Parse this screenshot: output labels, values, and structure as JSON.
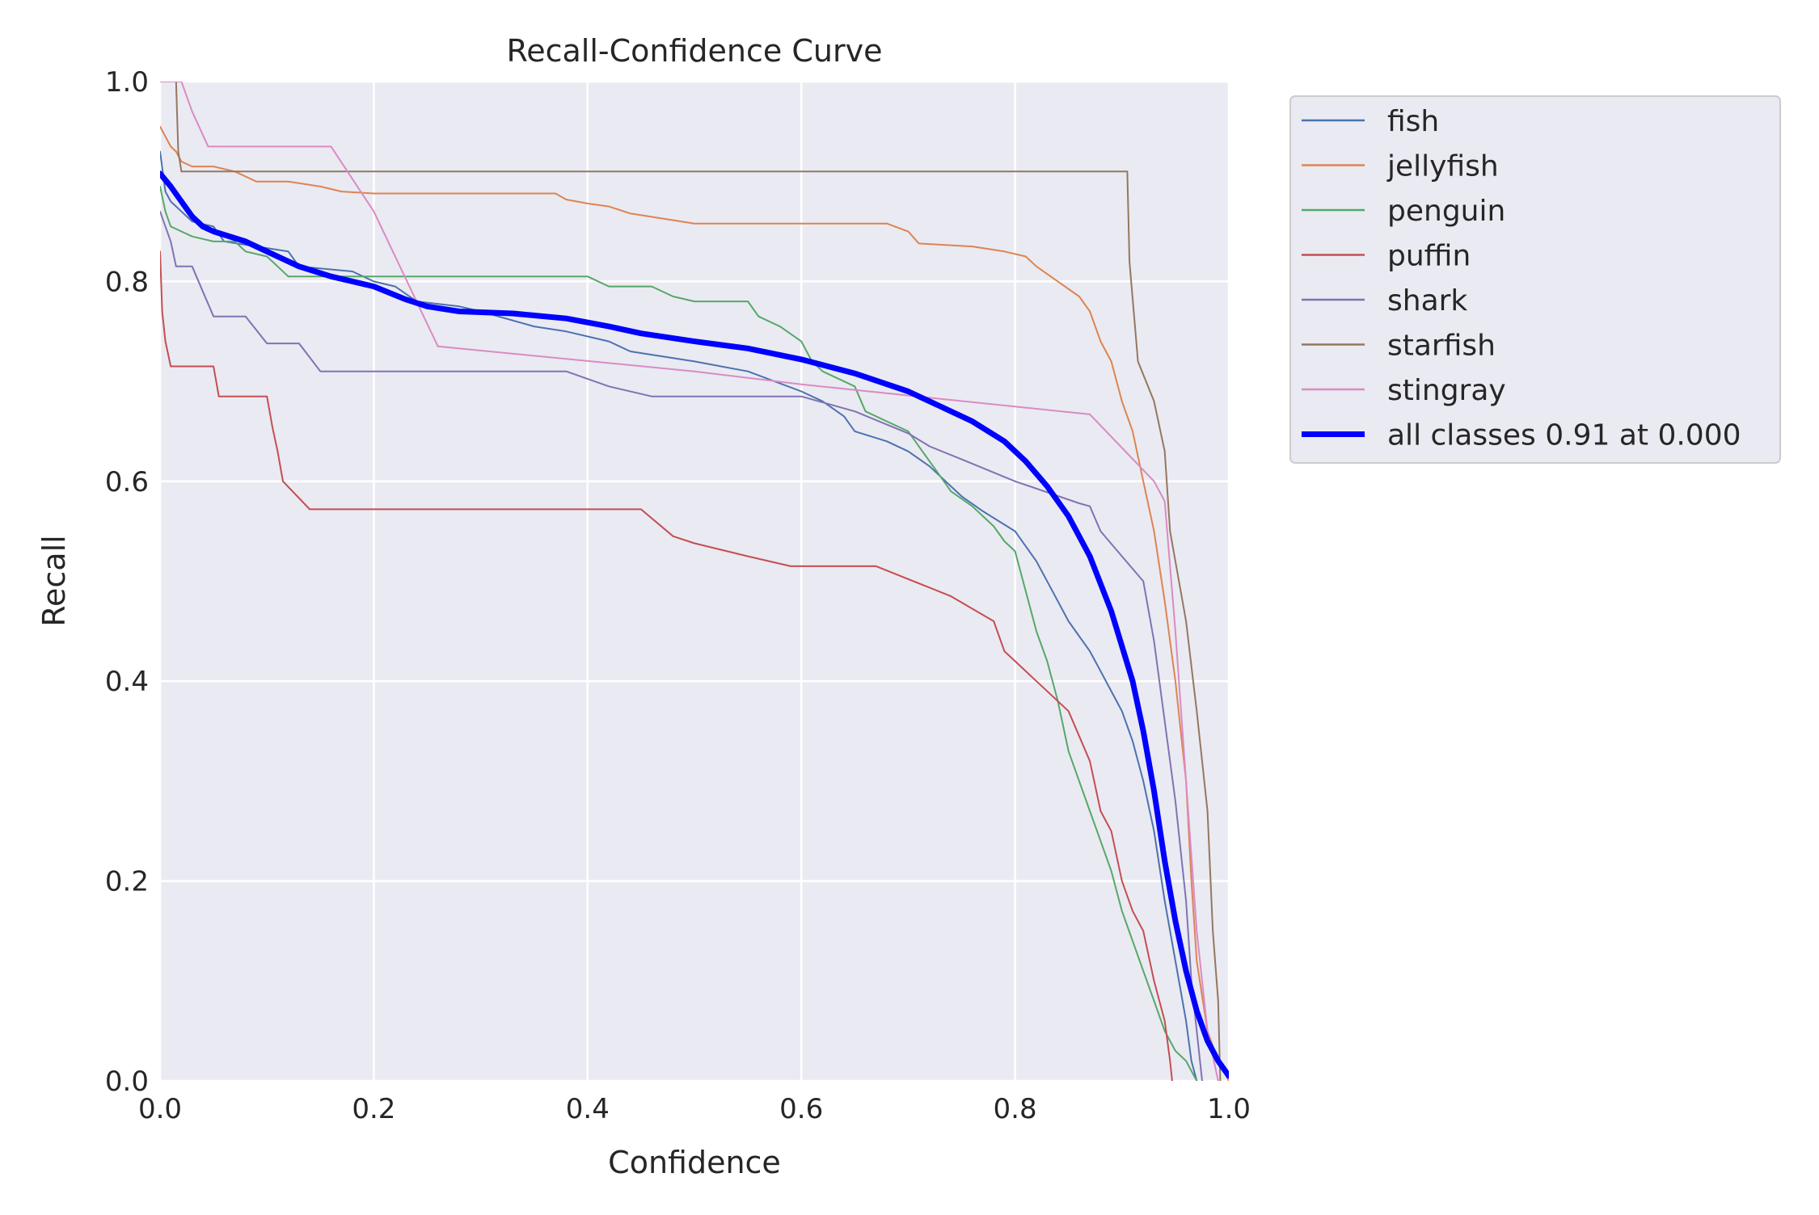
{
  "chart_data": {
    "type": "line",
    "title": "Recall-Confidence Curve",
    "xlabel": "Confidence",
    "ylabel": "Recall",
    "xlim": [
      0,
      1
    ],
    "ylim": [
      0,
      1
    ],
    "xticks": [
      "0.0",
      "0.2",
      "0.4",
      "0.6",
      "0.8",
      "1.0"
    ],
    "yticks": [
      "0.0",
      "0.2",
      "0.4",
      "0.6",
      "0.8",
      "1.0"
    ],
    "grid": true,
    "legend_position": "outside-upper-right",
    "series": [
      {
        "name": "fish",
        "color": "#4c72b0",
        "width": 2,
        "points": [
          [
            0,
            0.93
          ],
          [
            0.005,
            0.89
          ],
          [
            0.01,
            0.88
          ],
          [
            0.03,
            0.86
          ],
          [
            0.05,
            0.855
          ],
          [
            0.06,
            0.84
          ],
          [
            0.12,
            0.83
          ],
          [
            0.13,
            0.815
          ],
          [
            0.18,
            0.81
          ],
          [
            0.2,
            0.8
          ],
          [
            0.22,
            0.795
          ],
          [
            0.24,
            0.78
          ],
          [
            0.28,
            0.775
          ],
          [
            0.3,
            0.77
          ],
          [
            0.35,
            0.755
          ],
          [
            0.38,
            0.75
          ],
          [
            0.42,
            0.74
          ],
          [
            0.44,
            0.73
          ],
          [
            0.5,
            0.72
          ],
          [
            0.55,
            0.71
          ],
          [
            0.6,
            0.69
          ],
          [
            0.62,
            0.68
          ],
          [
            0.64,
            0.665
          ],
          [
            0.65,
            0.65
          ],
          [
            0.68,
            0.64
          ],
          [
            0.7,
            0.63
          ],
          [
            0.72,
            0.615
          ],
          [
            0.75,
            0.585
          ],
          [
            0.77,
            0.57
          ],
          [
            0.8,
            0.55
          ],
          [
            0.82,
            0.52
          ],
          [
            0.84,
            0.48
          ],
          [
            0.85,
            0.46
          ],
          [
            0.87,
            0.43
          ],
          [
            0.88,
            0.41
          ],
          [
            0.89,
            0.39
          ],
          [
            0.9,
            0.37
          ],
          [
            0.91,
            0.34
          ],
          [
            0.92,
            0.3
          ],
          [
            0.93,
            0.25
          ],
          [
            0.94,
            0.18
          ],
          [
            0.95,
            0.12
          ],
          [
            0.96,
            0.06
          ],
          [
            0.965,
            0.02
          ],
          [
            0.97,
            0.0
          ]
        ]
      },
      {
        "name": "jellyfish",
        "color": "#dd8452",
        "width": 2,
        "points": [
          [
            0,
            0.955
          ],
          [
            0.005,
            0.945
          ],
          [
            0.01,
            0.935
          ],
          [
            0.015,
            0.93
          ],
          [
            0.02,
            0.92
          ],
          [
            0.03,
            0.915
          ],
          [
            0.05,
            0.915
          ],
          [
            0.07,
            0.91
          ],
          [
            0.08,
            0.905
          ],
          [
            0.09,
            0.9
          ],
          [
            0.12,
            0.9
          ],
          [
            0.15,
            0.895
          ],
          [
            0.17,
            0.89
          ],
          [
            0.2,
            0.888
          ],
          [
            0.25,
            0.888
          ],
          [
            0.37,
            0.888
          ],
          [
            0.38,
            0.882
          ],
          [
            0.4,
            0.878
          ],
          [
            0.42,
            0.875
          ],
          [
            0.44,
            0.868
          ],
          [
            0.5,
            0.858
          ],
          [
            0.6,
            0.858
          ],
          [
            0.68,
            0.858
          ],
          [
            0.7,
            0.85
          ],
          [
            0.71,
            0.838
          ],
          [
            0.76,
            0.835
          ],
          [
            0.79,
            0.83
          ],
          [
            0.81,
            0.825
          ],
          [
            0.82,
            0.815
          ],
          [
            0.84,
            0.8
          ],
          [
            0.86,
            0.785
          ],
          [
            0.87,
            0.77
          ],
          [
            0.88,
            0.74
          ],
          [
            0.89,
            0.72
          ],
          [
            0.9,
            0.68
          ],
          [
            0.91,
            0.65
          ],
          [
            0.92,
            0.6
          ],
          [
            0.93,
            0.55
          ],
          [
            0.94,
            0.48
          ],
          [
            0.95,
            0.4
          ],
          [
            0.96,
            0.3
          ],
          [
            0.965,
            0.2
          ],
          [
            0.97,
            0.12
          ],
          [
            0.98,
            0.05
          ],
          [
            0.99,
            0.02
          ],
          [
            1.0,
            0.0
          ]
        ]
      },
      {
        "name": "penguin",
        "color": "#55a868",
        "width": 2,
        "points": [
          [
            0,
            0.895
          ],
          [
            0.005,
            0.87
          ],
          [
            0.01,
            0.855
          ],
          [
            0.02,
            0.85
          ],
          [
            0.03,
            0.845
          ],
          [
            0.05,
            0.84
          ],
          [
            0.07,
            0.84
          ],
          [
            0.08,
            0.83
          ],
          [
            0.1,
            0.825
          ],
          [
            0.11,
            0.815
          ],
          [
            0.12,
            0.805
          ],
          [
            0.2,
            0.805
          ],
          [
            0.3,
            0.805
          ],
          [
            0.4,
            0.805
          ],
          [
            0.42,
            0.795
          ],
          [
            0.46,
            0.795
          ],
          [
            0.48,
            0.785
          ],
          [
            0.5,
            0.78
          ],
          [
            0.55,
            0.78
          ],
          [
            0.56,
            0.765
          ],
          [
            0.58,
            0.755
          ],
          [
            0.6,
            0.74
          ],
          [
            0.61,
            0.72
          ],
          [
            0.62,
            0.71
          ],
          [
            0.65,
            0.695
          ],
          [
            0.66,
            0.67
          ],
          [
            0.68,
            0.66
          ],
          [
            0.7,
            0.65
          ],
          [
            0.72,
            0.62
          ],
          [
            0.73,
            0.605
          ],
          [
            0.74,
            0.59
          ],
          [
            0.76,
            0.575
          ],
          [
            0.78,
            0.555
          ],
          [
            0.79,
            0.54
          ],
          [
            0.8,
            0.53
          ],
          [
            0.81,
            0.49
          ],
          [
            0.82,
            0.45
          ],
          [
            0.83,
            0.42
          ],
          [
            0.84,
            0.38
          ],
          [
            0.85,
            0.33
          ],
          [
            0.86,
            0.3
          ],
          [
            0.87,
            0.27
          ],
          [
            0.88,
            0.24
          ],
          [
            0.89,
            0.21
          ],
          [
            0.9,
            0.17
          ],
          [
            0.91,
            0.14
          ],
          [
            0.92,
            0.11
          ],
          [
            0.93,
            0.08
          ],
          [
            0.94,
            0.05
          ],
          [
            0.95,
            0.03
          ],
          [
            0.96,
            0.02
          ],
          [
            0.97,
            0.0
          ]
        ]
      },
      {
        "name": "puffin",
        "color": "#c44e52",
        "width": 2,
        "points": [
          [
            0,
            0.83
          ],
          [
            0.002,
            0.77
          ],
          [
            0.005,
            0.74
          ],
          [
            0.01,
            0.715
          ],
          [
            0.05,
            0.715
          ],
          [
            0.055,
            0.685
          ],
          [
            0.1,
            0.685
          ],
          [
            0.105,
            0.655
          ],
          [
            0.11,
            0.63
          ],
          [
            0.115,
            0.6
          ],
          [
            0.14,
            0.572
          ],
          [
            0.2,
            0.572
          ],
          [
            0.3,
            0.572
          ],
          [
            0.4,
            0.572
          ],
          [
            0.45,
            0.572
          ],
          [
            0.48,
            0.545
          ],
          [
            0.5,
            0.538
          ],
          [
            0.55,
            0.525
          ],
          [
            0.59,
            0.515
          ],
          [
            0.67,
            0.515
          ],
          [
            0.74,
            0.485
          ],
          [
            0.78,
            0.46
          ],
          [
            0.79,
            0.43
          ],
          [
            0.82,
            0.4
          ],
          [
            0.85,
            0.37
          ],
          [
            0.86,
            0.345
          ],
          [
            0.87,
            0.32
          ],
          [
            0.88,
            0.27
          ],
          [
            0.89,
            0.25
          ],
          [
            0.9,
            0.2
          ],
          [
            0.91,
            0.17
          ],
          [
            0.92,
            0.15
          ],
          [
            0.93,
            0.1
          ],
          [
            0.94,
            0.06
          ],
          [
            0.945,
            0.02
          ],
          [
            0.947,
            0.0
          ]
        ]
      },
      {
        "name": "shark",
        "color": "#8172b3",
        "width": 2,
        "points": [
          [
            0,
            0.87
          ],
          [
            0.005,
            0.855
          ],
          [
            0.01,
            0.84
          ],
          [
            0.015,
            0.815
          ],
          [
            0.03,
            0.815
          ],
          [
            0.04,
            0.79
          ],
          [
            0.05,
            0.765
          ],
          [
            0.08,
            0.765
          ],
          [
            0.1,
            0.738
          ],
          [
            0.13,
            0.738
          ],
          [
            0.15,
            0.71
          ],
          [
            0.2,
            0.71
          ],
          [
            0.3,
            0.71
          ],
          [
            0.38,
            0.71
          ],
          [
            0.42,
            0.695
          ],
          [
            0.46,
            0.685
          ],
          [
            0.5,
            0.685
          ],
          [
            0.6,
            0.685
          ],
          [
            0.65,
            0.67
          ],
          [
            0.7,
            0.648
          ],
          [
            0.72,
            0.635
          ],
          [
            0.75,
            0.622
          ],
          [
            0.8,
            0.6
          ],
          [
            0.86,
            0.578
          ],
          [
            0.87,
            0.575
          ],
          [
            0.88,
            0.55
          ],
          [
            0.9,
            0.525
          ],
          [
            0.92,
            0.5
          ],
          [
            0.93,
            0.44
          ],
          [
            0.94,
            0.36
          ],
          [
            0.95,
            0.28
          ],
          [
            0.96,
            0.18
          ],
          [
            0.965,
            0.1
          ],
          [
            0.97,
            0.05
          ],
          [
            0.975,
            0.0
          ]
        ]
      },
      {
        "name": "starfish",
        "color": "#937860",
        "width": 2,
        "points": [
          [
            0,
            1.0
          ],
          [
            0.015,
            1.0
          ],
          [
            0.017,
            0.93
          ],
          [
            0.02,
            0.91
          ],
          [
            0.05,
            0.91
          ],
          [
            0.2,
            0.91
          ],
          [
            0.4,
            0.91
          ],
          [
            0.6,
            0.91
          ],
          [
            0.8,
            0.91
          ],
          [
            0.905,
            0.91
          ],
          [
            0.907,
            0.82
          ],
          [
            0.915,
            0.72
          ],
          [
            0.93,
            0.68
          ],
          [
            0.94,
            0.63
          ],
          [
            0.945,
            0.55
          ],
          [
            0.95,
            0.52
          ],
          [
            0.96,
            0.46
          ],
          [
            0.97,
            0.37
          ],
          [
            0.98,
            0.27
          ],
          [
            0.985,
            0.15
          ],
          [
            0.99,
            0.08
          ],
          [
            0.992,
            0.0
          ]
        ]
      },
      {
        "name": "stingray",
        "color": "#da8bc3",
        "width": 2,
        "points": [
          [
            0,
            1.0
          ],
          [
            0.02,
            1.0
          ],
          [
            0.03,
            0.97
          ],
          [
            0.045,
            0.935
          ],
          [
            0.16,
            0.935
          ],
          [
            0.2,
            0.87
          ],
          [
            0.26,
            0.735
          ],
          [
            0.5,
            0.71
          ],
          [
            0.6,
            0.697
          ],
          [
            0.87,
            0.667
          ],
          [
            0.93,
            0.6
          ],
          [
            0.94,
            0.58
          ],
          [
            0.95,
            0.45
          ],
          [
            0.96,
            0.3
          ],
          [
            0.97,
            0.15
          ],
          [
            0.98,
            0.05
          ],
          [
            0.99,
            0.0
          ]
        ]
      },
      {
        "name": "all classes 0.91 at 0.000",
        "color": "#0000ff",
        "width": 7,
        "points": [
          [
            0,
            0.908
          ],
          [
            0.01,
            0.895
          ],
          [
            0.02,
            0.88
          ],
          [
            0.03,
            0.865
          ],
          [
            0.04,
            0.855
          ],
          [
            0.05,
            0.85
          ],
          [
            0.08,
            0.84
          ],
          [
            0.1,
            0.83
          ],
          [
            0.13,
            0.815
          ],
          [
            0.16,
            0.805
          ],
          [
            0.2,
            0.795
          ],
          [
            0.23,
            0.782
          ],
          [
            0.25,
            0.775
          ],
          [
            0.28,
            0.77
          ],
          [
            0.33,
            0.768
          ],
          [
            0.38,
            0.763
          ],
          [
            0.42,
            0.755
          ],
          [
            0.45,
            0.748
          ],
          [
            0.5,
            0.74
          ],
          [
            0.55,
            0.733
          ],
          [
            0.6,
            0.722
          ],
          [
            0.65,
            0.708
          ],
          [
            0.7,
            0.69
          ],
          [
            0.73,
            0.675
          ],
          [
            0.76,
            0.66
          ],
          [
            0.79,
            0.64
          ],
          [
            0.81,
            0.62
          ],
          [
            0.83,
            0.595
          ],
          [
            0.85,
            0.565
          ],
          [
            0.87,
            0.525
          ],
          [
            0.89,
            0.47
          ],
          [
            0.91,
            0.4
          ],
          [
            0.92,
            0.35
          ],
          [
            0.93,
            0.29
          ],
          [
            0.94,
            0.22
          ],
          [
            0.95,
            0.16
          ],
          [
            0.96,
            0.11
          ],
          [
            0.97,
            0.07
          ],
          [
            0.98,
            0.04
          ],
          [
            0.99,
            0.02
          ],
          [
            1.0,
            0.005
          ]
        ]
      }
    ]
  }
}
